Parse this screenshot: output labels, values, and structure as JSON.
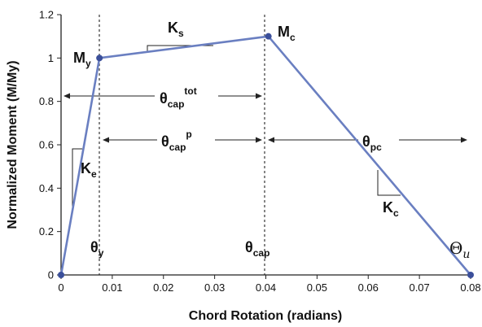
{
  "chart_data": {
    "type": "line",
    "xlabel": "Chord Rotation (radians)",
    "ylabel": "Normalized Moment (M/My)",
    "xlim": [
      0,
      0.08
    ],
    "ylim": [
      0,
      1.2
    ],
    "x_ticks": [
      "0",
      "0.01",
      "0.02",
      "0.03",
      "0.04",
      "0.05",
      "0.06",
      "0.07",
      "0.08"
    ],
    "y_ticks": [
      "0",
      "0.2",
      "0.4",
      "0.6",
      "0.8",
      "1",
      "1.2"
    ],
    "grid": false,
    "line_color": "#6a7fc1",
    "series": [
      {
        "points": [
          {
            "x": 0,
            "y": 0
          },
          {
            "x": 0.0075,
            "y": 1.0
          },
          {
            "x": 0.0405,
            "y": 1.1
          },
          {
            "x": 0.08,
            "y": 0
          }
        ]
      }
    ],
    "points_labels": {
      "my": {
        "main": "M",
        "sub": "y"
      },
      "mc": {
        "main": "M",
        "sub": "c"
      }
    },
    "stiffness_labels": {
      "ke": {
        "main": "K",
        "sub": "e"
      },
      "ks": {
        "main": "K",
        "sub": "s"
      },
      "kc": {
        "main": "K",
        "sub": "c"
      }
    },
    "rotation_labels": {
      "theta_cap_tot": {
        "main": "θ",
        "sub": "cap",
        "sup": "tot"
      },
      "theta_cap_p": {
        "main": "θ",
        "sub": "cap",
        "sup": "p"
      },
      "theta_pc": {
        "main": "θ",
        "sub": "pc"
      },
      "theta_y": {
        "main": "θ",
        "sub": "y"
      },
      "theta_cap": {
        "main": "θ",
        "sub": "cap"
      },
      "theta_u": {
        "main": "Θ",
        "sub": "u"
      }
    }
  }
}
